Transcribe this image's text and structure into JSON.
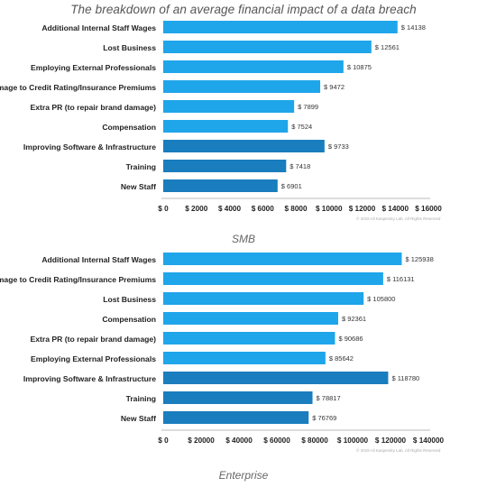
{
  "title": "The breakdown of an average financial impact of a data breach",
  "colors": {
    "light": "#1fa5ea",
    "dark": "#1a7dbd",
    "axis": "#bbbbbb"
  },
  "chart_data": [
    {
      "type": "bar",
      "orientation": "horizontal",
      "caption": "SMB",
      "categories": [
        "Additional Internal Staff Wages",
        "Lost Business",
        "Employing External Professionals",
        "Damage to Credit Rating/Insurance Premiums",
        "Extra PR (to repair brand damage)",
        "Compensation",
        "Improving Software & Infrastructure",
        "Training",
        "New Staff"
      ],
      "values": [
        14138,
        12561,
        10875,
        9472,
        7899,
        7524,
        9733,
        7418,
        6901
      ],
      "value_labels": [
        "$ 14138",
        "$ 12561",
        "$ 10875",
        "$ 9472",
        "$ 7899",
        "$ 7524",
        "$ 9733",
        "$ 7418",
        "$ 6901"
      ],
      "bar_colors": [
        "light",
        "light",
        "light",
        "light",
        "light",
        "light",
        "dark",
        "dark",
        "dark"
      ],
      "xlim": [
        0,
        16000
      ],
      "ticks": [
        0,
        2000,
        4000,
        6000,
        8000,
        10000,
        12000,
        14000,
        16000
      ],
      "tick_labels": [
        "$ 0",
        "$ 2000",
        "$ 4000",
        "$ 6000",
        "$ 8000",
        "$ 10000",
        "$ 12000",
        "$ 14000",
        "$ 16000"
      ],
      "copyright": "© 2018 All Kaspersky Lab. All Rights Reserved",
      "grid": false
    },
    {
      "type": "bar",
      "orientation": "horizontal",
      "caption": "Enterprise",
      "categories": [
        "Additional Internal Staff Wages",
        "Damage to Credit Rating/Insurance Premiums",
        "Lost Business",
        "Compensation",
        "Extra PR (to repair brand damage)",
        "Employing External Professionals",
        "Improving Software & Infrastructure",
        "Training",
        "New Staff"
      ],
      "values": [
        125938,
        116131,
        105800,
        92361,
        90686,
        85642,
        118780,
        78817,
        76769
      ],
      "value_labels": [
        "$ 125938",
        "$ 116131",
        "$ 105800",
        "$ 92361",
        "$ 90686",
        "$ 85642",
        "$ 118780",
        "$ 78817",
        "$ 76769"
      ],
      "bar_colors": [
        "light",
        "light",
        "light",
        "light",
        "light",
        "light",
        "dark",
        "dark",
        "dark"
      ],
      "xlim": [
        0,
        140000
      ],
      "ticks": [
        0,
        20000,
        40000,
        60000,
        80000,
        100000,
        120000,
        140000
      ],
      "tick_labels": [
        "$ 0",
        "$ 20000",
        "$ 40000",
        "$ 60000",
        "$ 80000",
        "$ 100000",
        "$ 120000",
        "$ 140000"
      ],
      "copyright": "© 2018 All Kaspersky Lab. All Rights Reserved",
      "grid": false
    }
  ]
}
